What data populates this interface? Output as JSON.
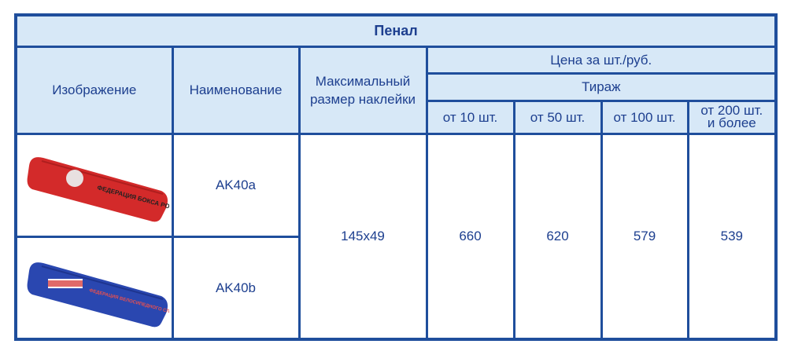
{
  "title": "Пенал",
  "headers": {
    "image": "Изображение",
    "name": "Наименование",
    "max_size": "Максимальный размер наклейки",
    "price": "Цена за шт./руб.",
    "run": "Тираж",
    "tiers": [
      "от 10 шт.",
      "от 50 шт.",
      "от 100 шт.",
      "от 200 шт. и более"
    ]
  },
  "products": [
    {
      "name": "AK40a",
      "color": "#d32a2a",
      "print": "ФЕДЕРАЦИЯ БОКСА РОССИИ"
    },
    {
      "name": "AK40b",
      "color": "#2a47b0",
      "print": "ФЕДЕРАЦИЯ ВЕЛОСИПЕДНОГО СПОРТА РОССИИ"
    }
  ],
  "max_size": "145x49",
  "prices": [
    "660",
    "620",
    "579",
    "539"
  ],
  "colors": {
    "border": "#1f4e9c",
    "header_bg": "#d7e8f7",
    "text": "#1d3f8f"
  }
}
